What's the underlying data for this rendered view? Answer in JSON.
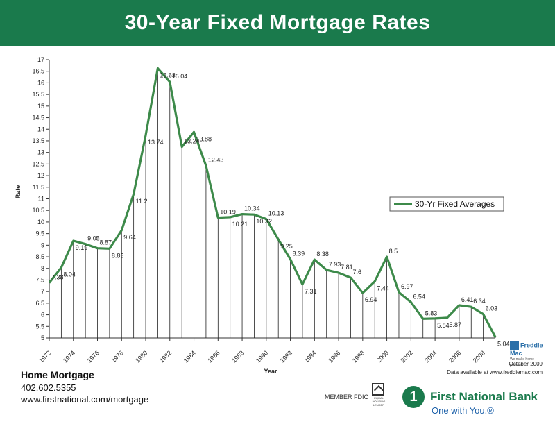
{
  "header": {
    "title": "30-Year Fixed Mortgage Rates"
  },
  "chart_data": {
    "type": "line",
    "title": "30-Year Fixed Mortgage Rates",
    "xlabel": "Year",
    "ylabel": "Rate",
    "xlim": [
      1972,
      2009
    ],
    "ylim": [
      5,
      17
    ],
    "y_ticks": [
      "5",
      "5.5",
      "6",
      "6.5",
      "7",
      "7.5",
      "8",
      "8.5",
      "9",
      "9.5",
      "10",
      "10.5",
      "11",
      "11.5",
      "12",
      "12.5",
      "13",
      "13.5",
      "14",
      "14.5",
      "15",
      "15.5",
      "16",
      "16.5",
      "17"
    ],
    "x_ticks": [
      "1972",
      "1974",
      "1976",
      "1978",
      "1980",
      "1982",
      "1984",
      "1986",
      "1988",
      "1990",
      "1992",
      "1994",
      "1996",
      "1998",
      "2000",
      "2002",
      "2004",
      "2006",
      "2008"
    ],
    "legend_position": "right",
    "grid": "vertical drop lines",
    "series": [
      {
        "name": "30-Yr Fixed Averages",
        "color": "#3d8a4a",
        "x": [
          1972,
          1973,
          1974,
          1975,
          1976,
          1977,
          1978,
          1979,
          1980,
          1981,
          1982,
          1983,
          1984,
          1985,
          1986,
          1987,
          1988,
          1989,
          1990,
          1991,
          1992,
          1993,
          1994,
          1995,
          1996,
          1997,
          1998,
          1999,
          2000,
          2001,
          2002,
          2003,
          2004,
          2005,
          2006,
          2007,
          2008,
          2009
        ],
        "values": [
          7.38,
          8.04,
          9.19,
          9.05,
          8.87,
          8.85,
          9.64,
          11.2,
          13.74,
          16.63,
          16.04,
          13.24,
          13.88,
          12.43,
          10.19,
          10.21,
          10.34,
          10.32,
          10.13,
          9.25,
          8.39,
          7.31,
          8.38,
          7.93,
          7.81,
          7.6,
          6.94,
          7.44,
          8.5,
          6.97,
          6.54,
          5.83,
          5.84,
          5.87,
          6.41,
          6.34,
          6.03,
          5.04
        ]
      }
    ],
    "data_labels": [
      "7.38",
      "8.04",
      "9.19",
      "9.05",
      "8.87",
      "8.85",
      "9.64",
      "11.2",
      "13.74",
      "16.63",
      "16.04",
      "13.24",
      "13.88",
      "12.43",
      "10.19",
      "10.21",
      "10.34",
      "10.32",
      "10.13",
      "9.25",
      "8.39",
      "7.31",
      "8.38",
      "7.93",
      "7.81",
      "7.6",
      "6.94",
      "7.44",
      "8.5",
      "6.97",
      "6.54",
      "5.83",
      "5.84",
      "5.87",
      "6.41",
      "6.34",
      "6.03",
      "5.04"
    ]
  },
  "footer": {
    "company_title": "Home Mortgage",
    "phone": "402.602.5355",
    "url": "www.firstnational.com/mortgage"
  },
  "source": {
    "logo_name": "Freddie Mac",
    "logo_tagline": "We make home possible",
    "date": "October 2009",
    "availability": "Data available at www.freddiemac.com"
  },
  "bank": {
    "member": "MEMBER FDIC",
    "equal_housing": "EQUAL HOUSING LENDER",
    "logo_glyph": "1",
    "name": "First National Bank",
    "tagline": "One with You.®"
  }
}
